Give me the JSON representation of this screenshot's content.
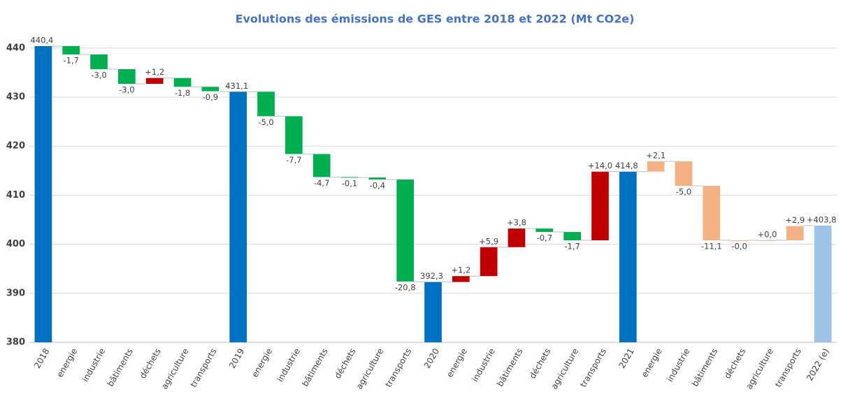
{
  "chart_data": {
    "type": "waterfall",
    "title": "Evolutions des émissions de GES entre 2018 et 2022 (Mt CO2e)",
    "categories": [
      "2018",
      "energie",
      "industrie",
      "bâtiments",
      "déchets",
      "agriculture",
      "transports",
      "2019",
      "energie",
      "industrie",
      "bâtiments",
      "déchets",
      "agriculture",
      "transports",
      "2020",
      "energie",
      "industrie",
      "bâtiments",
      "déchets",
      "agriculture",
      "transports",
      "2021",
      "energie",
      "industrie",
      "bâtiments",
      "déchets",
      "agriculture",
      "transports",
      "2022 (e)"
    ],
    "measure": [
      "total",
      "relative",
      "relative",
      "relative",
      "relative",
      "relative",
      "relative",
      "total",
      "relative",
      "relative",
      "relative",
      "relative",
      "relative",
      "relative",
      "total",
      "relative",
      "relative",
      "relative",
      "relative",
      "relative",
      "relative",
      "total",
      "relative",
      "relative",
      "relative",
      "relative",
      "relative",
      "relative",
      "total"
    ],
    "values": [
      440.4,
      -1.7,
      -3.0,
      -3.0,
      1.2,
      -1.8,
      -0.9,
      431.1,
      -5.0,
      -7.7,
      -4.7,
      -0.1,
      -0.4,
      -20.8,
      392.3,
      1.2,
      5.9,
      3.8,
      -0.7,
      -1.7,
      14.0,
      414.8,
      2.1,
      -5.0,
      -11.1,
      0,
      0,
      2.9,
      403.8
    ],
    "value_labels": [
      "440,4",
      "-1,7",
      "-3,0",
      "-3,0",
      "+1,2",
      "-1,8",
      "-0,9",
      "431,1",
      "-5,0",
      "-7,7",
      "-4,7",
      "-0,1",
      "-0,4",
      "-20,8",
      "392,3",
      "+1,2",
      "+5,9",
      "+3,8",
      "-0,7",
      "-1,7",
      "+14,0",
      "414,8",
      "+2,1",
      "-5,0",
      "-11,1",
      "-0,0",
      "+0,0",
      "+2,9",
      "+403,8"
    ],
    "colors": [
      "#0070c0",
      "#00b050",
      "#00b050",
      "#00b050",
      "#c00000",
      "#00b050",
      "#00b050",
      "#0070c0",
      "#00b050",
      "#00b050",
      "#00b050",
      "#00b050",
      "#00b050",
      "#00b050",
      "#0070c0",
      "#c00000",
      "#c00000",
      "#c00000",
      "#00b050",
      "#00b050",
      "#c00000",
      "#0070c0",
      "#f4b183",
      "#f4b183",
      "#f4b183",
      "#f4b183",
      "#f4b183",
      "#f4b183",
      "#9dc3e6"
    ],
    "ylim": [
      380,
      445
    ],
    "yticks": [
      380,
      390,
      400,
      410,
      420,
      430,
      440
    ],
    "grid": true
  }
}
